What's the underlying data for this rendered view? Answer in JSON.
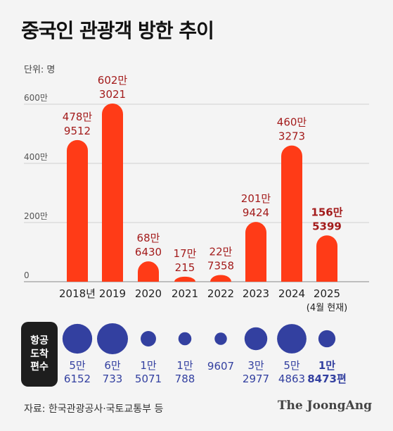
{
  "header": {
    "title": "중국인 관광객 방한 추이",
    "unit": "단위: 명"
  },
  "chart_data": {
    "type": "bar",
    "title": "중국인 관광객 방한 추이",
    "ylabel": "단위: 명",
    "ylim": [
      0,
      6000000
    ],
    "yticks": [
      0,
      2000000,
      4000000,
      6000000
    ],
    "ytick_labels": [
      "0",
      "200만",
      "400만",
      "600만"
    ],
    "grid": true,
    "categories": [
      "2018년",
      "2019",
      "2020",
      "2021",
      "2022",
      "2023",
      "2024",
      "2025"
    ],
    "category_notes": [
      "",
      "",
      "",
      "",
      "",
      "",
      "",
      "(4월 현재)"
    ],
    "values": [
      4789512,
      6023021,
      686430,
      170215,
      227358,
      2019424,
      4603273,
      1565399
    ],
    "value_labels": [
      [
        "478만",
        "9512"
      ],
      [
        "602만",
        "3021"
      ],
      [
        "68만",
        "6430"
      ],
      [
        "17만",
        "215"
      ],
      [
        "22만",
        "7358"
      ],
      [
        "201만",
        "9424"
      ],
      [
        "460만",
        "3273"
      ],
      [
        "156만",
        "5399"
      ]
    ],
    "highlight_index": 7,
    "bar_color": "#ff3b17",
    "label_color": "#a31b1b",
    "flights": {
      "label": [
        "항공",
        "도착",
        "편수"
      ],
      "values": [
        56152,
        60733,
        15071,
        10788,
        9607,
        32977,
        54863,
        18473
      ],
      "labels": [
        [
          "5만",
          "6152"
        ],
        [
          "6만",
          "733"
        ],
        [
          "1만",
          "5071"
        ],
        [
          "1만",
          "788"
        ],
        [
          "9607"
        ],
        [
          "3만",
          "2977"
        ],
        [
          "5만",
          "4863"
        ],
        [
          "1만",
          "8473편"
        ]
      ],
      "color": "#3340a0"
    }
  },
  "footer": {
    "source": "자료: 한국관광공사·국토교통부 등",
    "brand": "The JoongAng"
  }
}
